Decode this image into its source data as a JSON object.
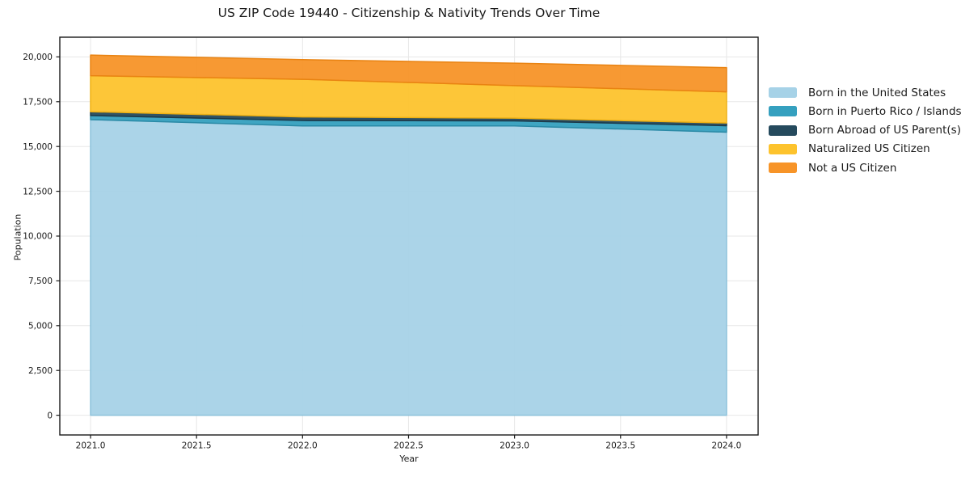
{
  "title": "US ZIP Code 19440 - Citizenship & Nativity Trends Over Time",
  "chart_data": {
    "type": "area",
    "stacked": true,
    "title": "US ZIP Code 19440 - Citizenship & Nativity Trends Over Time",
    "xlabel": "Year",
    "ylabel": "Population",
    "x": [
      2021,
      2022,
      2023,
      2024
    ],
    "series": [
      {
        "name": "Born in the United States",
        "color": "#a6d2e7",
        "edge": "#8cc2db",
        "values": [
          16500,
          16150,
          16150,
          15800
        ]
      },
      {
        "name": "Born in Puerto Rico / Islands",
        "color": "#35a0bf",
        "edge": "#2b8aa6",
        "values": [
          230,
          300,
          280,
          360
        ]
      },
      {
        "name": "Born Abroad of US Parent(s)",
        "color": "#254a5d",
        "edge": "#1c3a4a",
        "values": [
          210,
          200,
          150,
          150
        ]
      },
      {
        "name": "Naturalized US Citizen",
        "color": "#fdc32d",
        "edge": "#efb113",
        "values": [
          2010,
          2100,
          1820,
          1740
        ]
      },
      {
        "name": "Not a US Citizen",
        "color": "#f79428",
        "edge": "#e98312",
        "values": [
          1150,
          1100,
          1250,
          1350
        ]
      }
    ],
    "totals": [
      20100,
      19850,
      19650,
      19400
    ],
    "xticks": [
      2021.0,
      2021.5,
      2022.0,
      2022.5,
      2023.0,
      2023.5,
      2024.0
    ],
    "xtick_labels": [
      "2021.0",
      "2021.5",
      "2022.0",
      "2022.5",
      "2023.0",
      "2023.5",
      "2024.0"
    ],
    "yticks": [
      0,
      2500,
      5000,
      7500,
      10000,
      12500,
      15000,
      17500,
      20000
    ],
    "ytick_labels": [
      "0",
      "2,500",
      "5,000",
      "7,500",
      "10,000",
      "12,500",
      "15,000",
      "17,500",
      "20,000"
    ],
    "xlim": [
      2020.855,
      2024.149
    ],
    "ylim": [
      -1100,
      21100
    ],
    "grid": true,
    "grid_color": "#e7e7e7",
    "spine_color": "#1a1a1a",
    "fill_opacity": 0.95,
    "legend_position": "right",
    "background": "#ffffff"
  }
}
